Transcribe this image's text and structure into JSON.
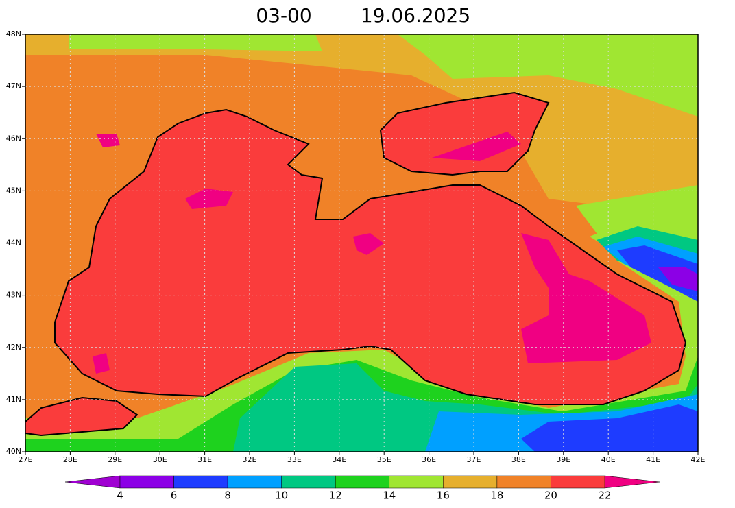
{
  "chart_data": {
    "type": "contour-map",
    "title": [
      "03-00",
      "19.06.2025"
    ],
    "xlim": [
      27,
      42
    ],
    "ylim": [
      40,
      48
    ],
    "xticks": [
      {
        "value": 27,
        "label": "27E"
      },
      {
        "value": 28,
        "label": "28E"
      },
      {
        "value": 29,
        "label": "29E"
      },
      {
        "value": 30,
        "label": "30E"
      },
      {
        "value": 31,
        "label": "31E"
      },
      {
        "value": 32,
        "label": "32E"
      },
      {
        "value": 33,
        "label": "33E"
      },
      {
        "value": 34,
        "label": "34E"
      },
      {
        "value": 35,
        "label": "35E"
      },
      {
        "value": 36,
        "label": "36E"
      },
      {
        "value": 37,
        "label": "37E"
      },
      {
        "value": 38,
        "label": "38E"
      },
      {
        "value": 39,
        "label": "39E"
      },
      {
        "value": 40,
        "label": "40E"
      },
      {
        "value": 41,
        "label": "41E"
      },
      {
        "value": 42,
        "label": "42E"
      }
    ],
    "yticks": [
      {
        "value": 40,
        "label": "40N"
      },
      {
        "value": 41,
        "label": "41N"
      },
      {
        "value": 42,
        "label": "42N"
      },
      {
        "value": 43,
        "label": "43N"
      },
      {
        "value": 44,
        "label": "44N"
      },
      {
        "value": 45,
        "label": "45N"
      },
      {
        "value": 46,
        "label": "46N"
      },
      {
        "value": 47,
        "label": "47N"
      },
      {
        "value": 48,
        "label": "48N"
      }
    ],
    "grid": true,
    "levels": [
      4,
      6,
      8,
      10,
      12,
      14,
      16,
      18,
      20,
      22
    ],
    "colors": [
      "#a000d2",
      "#8c00e6",
      "#1e3cff",
      "#00a0ff",
      "#00c882",
      "#1ed21e",
      "#a0e632",
      "#e6af2d",
      "#f08228",
      "#fa3c3c",
      "#f00082"
    ]
  }
}
